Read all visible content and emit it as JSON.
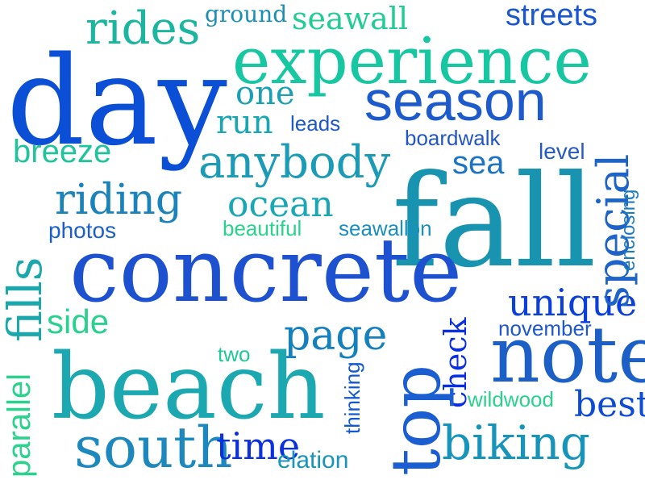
{
  "words": [
    {
      "text": "day",
      "color": "#0a4fd6"
    },
    {
      "text": "experience",
      "color": "#17c7a2"
    },
    {
      "text": "season",
      "color": "#1d5bcc"
    },
    {
      "text": "rides",
      "color": "#1bb6a0"
    },
    {
      "text": "ground",
      "color": "#1a8fb5"
    },
    {
      "text": "seawall",
      "color": "#22cc93"
    },
    {
      "text": "streets",
      "color": "#1a56cf"
    },
    {
      "text": "one",
      "color": "#1a9fb4"
    },
    {
      "text": "run",
      "color": "#1aa6b3"
    },
    {
      "text": "leads",
      "color": "#1d59c7"
    },
    {
      "text": "breeze",
      "color": "#20c39c"
    },
    {
      "text": "boardwalk",
      "color": "#2356c5"
    },
    {
      "text": "level",
      "color": "#2759c2"
    },
    {
      "text": "anybody",
      "color": "#1b9bb6"
    },
    {
      "text": "sea",
      "color": "#1b73c4"
    },
    {
      "text": "riding",
      "color": "#1a83bc"
    },
    {
      "text": "ocean",
      "color": "#1aa7b4"
    },
    {
      "text": "fall",
      "color": "#1894b1"
    },
    {
      "text": "photos",
      "color": "#1b5fc9"
    },
    {
      "text": "beautiful",
      "color": "#2ad38b"
    },
    {
      "text": "seawallon",
      "color": "#1a8ebd"
    },
    {
      "text": "concrete",
      "color": "#1d51d0"
    },
    {
      "text": "side",
      "color": "#29d18f"
    },
    {
      "text": "unique",
      "color": "#0a3fdb"
    },
    {
      "text": "page",
      "color": "#1580be"
    },
    {
      "text": "november",
      "color": "#1e58cc"
    },
    {
      "text": "note",
      "color": "#1c5fc6"
    },
    {
      "text": "two",
      "color": "#21c89a"
    },
    {
      "text": "beach",
      "color": "#1ca8b0"
    },
    {
      "text": "wildwood",
      "color": "#2ad18d"
    },
    {
      "text": "best",
      "color": "#0d4bd7"
    },
    {
      "text": "south",
      "color": "#1c88bd"
    },
    {
      "text": "time",
      "color": "#0a30e0"
    },
    {
      "text": "elation",
      "color": "#1794b8"
    },
    {
      "text": "biking",
      "color": "#1794b9"
    },
    {
      "text": "special",
      "color": "#1d63c8"
    },
    {
      "text": "enclosing",
      "color": "#1d7cc0"
    },
    {
      "text": "fills",
      "color": "#1ba8ad"
    },
    {
      "text": "check",
      "color": "#0a2ee2"
    },
    {
      "text": "top",
      "color": "#1a5ed1"
    },
    {
      "text": "parallel",
      "color": "#2ad28e"
    },
    {
      "text": "thinking",
      "color": "#1259d0"
    }
  ]
}
